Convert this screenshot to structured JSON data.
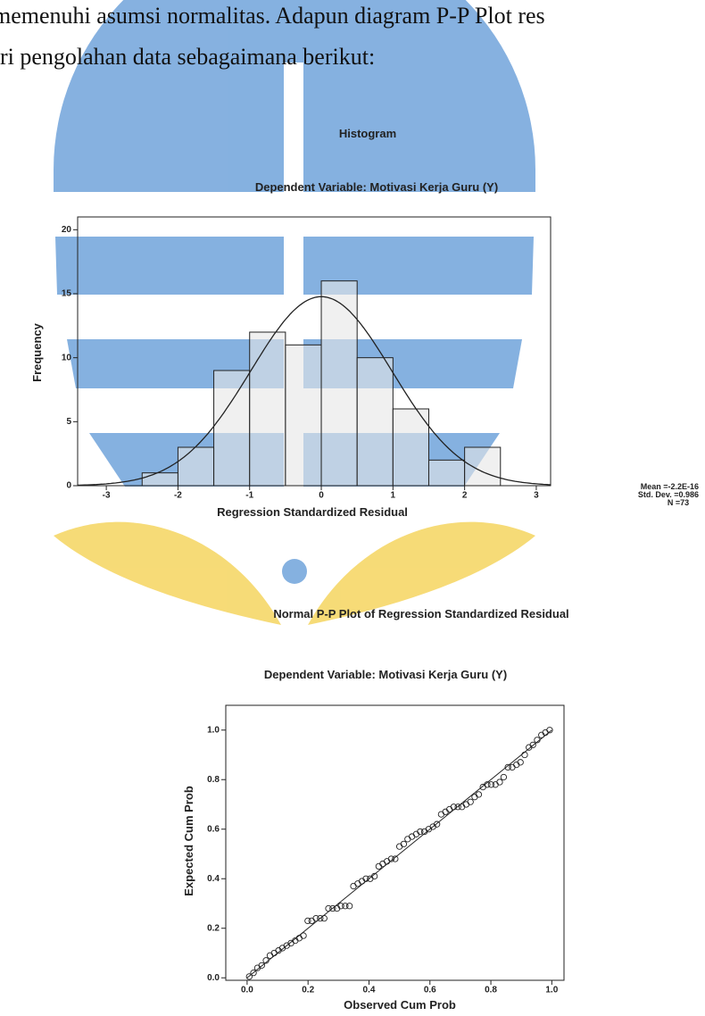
{
  "text_lines": [
    "memenuhi asumsi normalitas. Adapun diagram P-P Plot res",
    "ri pengolahan data sebagaimana berikut:"
  ],
  "chart_data": [
    {
      "type": "histogram",
      "title": "Histogram",
      "subtitle": "Dependent Variable: Motivasi Kerja Guru (Y)",
      "x_label": "Regression Standardized Residual",
      "y_label": "Frequency",
      "bins": [
        -2.5,
        -2,
        -1.5,
        -1,
        -0.5,
        0,
        0.5,
        1,
        1.5,
        2,
        2.5
      ],
      "values": [
        1,
        3,
        9,
        12,
        11,
        16,
        10,
        6,
        2,
        3
      ],
      "color": "#e6e6e6",
      "xlim": [
        -3.4,
        3.2
      ],
      "xticks": [
        -3,
        -2,
        -1,
        0,
        1,
        2,
        3
      ],
      "ylim": [
        0,
        21
      ],
      "yticks": [
        0,
        5,
        10,
        15,
        20
      ],
      "stats": [
        {
          "value": -2.2e-16,
          "label": "Mean =-2.2E-16"
        },
        {
          "value": 0.986,
          "label": "Std. Dev. =0.986"
        },
        {
          "value": 73,
          "label": "N =73"
        }
      ]
    },
    {
      "type": "scatter",
      "title": "Normal P-P Plot of Regression Standardized Residual",
      "subtitle": "Dependent Variable: Motivasi Kerja Guru (Y)",
      "x_label": "Observed Cum Prob",
      "y_label": "Expected Cum Prob",
      "x": [
        0.007,
        0.021,
        0.034,
        0.048,
        0.062,
        0.075,
        0.089,
        0.103,
        0.116,
        0.13,
        0.144,
        0.158,
        0.171,
        0.185,
        0.199,
        0.212,
        0.226,
        0.24,
        0.253,
        0.267,
        0.281,
        0.295,
        0.308,
        0.322,
        0.336,
        0.349,
        0.363,
        0.377,
        0.39,
        0.404,
        0.418,
        0.432,
        0.445,
        0.459,
        0.473,
        0.486,
        0.5,
        0.514,
        0.527,
        0.541,
        0.555,
        0.568,
        0.582,
        0.596,
        0.61,
        0.623,
        0.637,
        0.651,
        0.664,
        0.678,
        0.692,
        0.705,
        0.719,
        0.733,
        0.747,
        0.76,
        0.774,
        0.788,
        0.801,
        0.815,
        0.829,
        0.842,
        0.856,
        0.87,
        0.884,
        0.897,
        0.911,
        0.925,
        0.938,
        0.952,
        0.966,
        0.979,
        0.993
      ],
      "values": [
        0.005,
        0.02,
        0.04,
        0.05,
        0.07,
        0.09,
        0.1,
        0.11,
        0.12,
        0.13,
        0.14,
        0.15,
        0.16,
        0.17,
        0.23,
        0.23,
        0.24,
        0.24,
        0.24,
        0.28,
        0.28,
        0.28,
        0.29,
        0.29,
        0.29,
        0.37,
        0.38,
        0.39,
        0.4,
        0.4,
        0.41,
        0.45,
        0.46,
        0.47,
        0.48,
        0.48,
        0.53,
        0.54,
        0.56,
        0.57,
        0.58,
        0.59,
        0.59,
        0.6,
        0.61,
        0.62,
        0.66,
        0.67,
        0.68,
        0.69,
        0.69,
        0.69,
        0.7,
        0.71,
        0.73,
        0.74,
        0.77,
        0.78,
        0.78,
        0.78,
        0.79,
        0.81,
        0.85,
        0.85,
        0.86,
        0.87,
        0.9,
        0.93,
        0.94,
        0.96,
        0.98,
        0.99,
        1.0
      ],
      "xlim": [
        -0.07,
        1.04
      ],
      "xticks": [
        {
          "value": 0,
          "label": "0.0"
        },
        0.2,
        0.4,
        0.6,
        0.8,
        {
          "value": 1,
          "label": "1.0"
        }
      ],
      "ylim": [
        -0.01,
        1.1
      ],
      "yticks": [
        {
          "value": 0,
          "label": "0.0"
        },
        0.2,
        0.4,
        0.6,
        0.8,
        {
          "value": 1,
          "label": "1.0"
        }
      ]
    }
  ]
}
